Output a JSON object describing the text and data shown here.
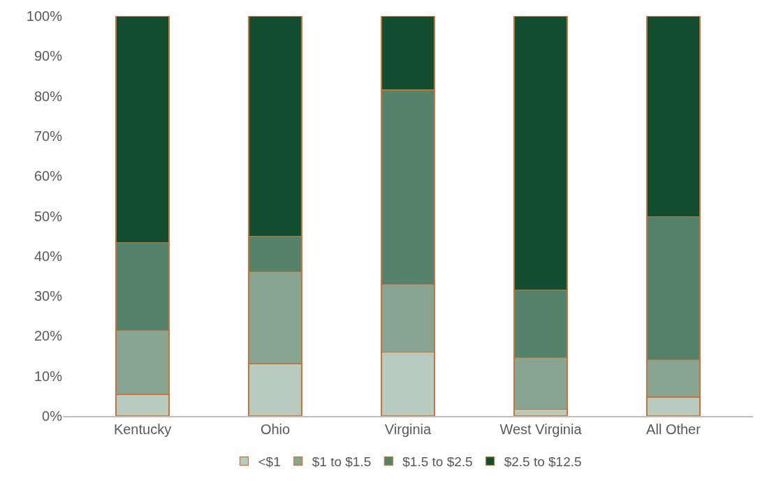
{
  "chart_data": {
    "type": "bar",
    "stacked": true,
    "categories": [
      "Kentucky",
      "Ohio",
      "Virginia",
      "West Virginia",
      "All Other"
    ],
    "series": [
      {
        "name": "<$1",
        "color": "#b9cbbf",
        "values": [
          5.4,
          13.1,
          16.0,
          1.6,
          4.7
        ]
      },
      {
        "name": "$1 to $1.5",
        "color": "#88a592",
        "values": [
          16.0,
          23.0,
          16.9,
          13.0,
          9.4
        ]
      },
      {
        "name": "$1.5 to $2.5",
        "color": "#55826a",
        "values": [
          22.0,
          8.8,
          48.6,
          16.9,
          35.7
        ]
      },
      {
        "name": "$2.5 to $12.5",
        "color": "#134d30",
        "values": [
          56.6,
          55.1,
          18.5,
          68.5,
          50.2
        ]
      }
    ],
    "ylim": [
      0,
      100
    ],
    "yticks": [
      {
        "value": 0,
        "label": "0%"
      },
      {
        "value": 10,
        "label": "10%"
      },
      {
        "value": 20,
        "label": "20%"
      },
      {
        "value": 30,
        "label": "30%"
      },
      {
        "value": 40,
        "label": "40%"
      },
      {
        "value": 50,
        "label": "50%"
      },
      {
        "value": 60,
        "label": "60%"
      },
      {
        "value": 70,
        "label": "70%"
      },
      {
        "value": 80,
        "label": "80%"
      },
      {
        "value": 90,
        "label": "90%"
      },
      {
        "value": 100,
        "label": "100%"
      }
    ],
    "legend": "bottom"
  }
}
